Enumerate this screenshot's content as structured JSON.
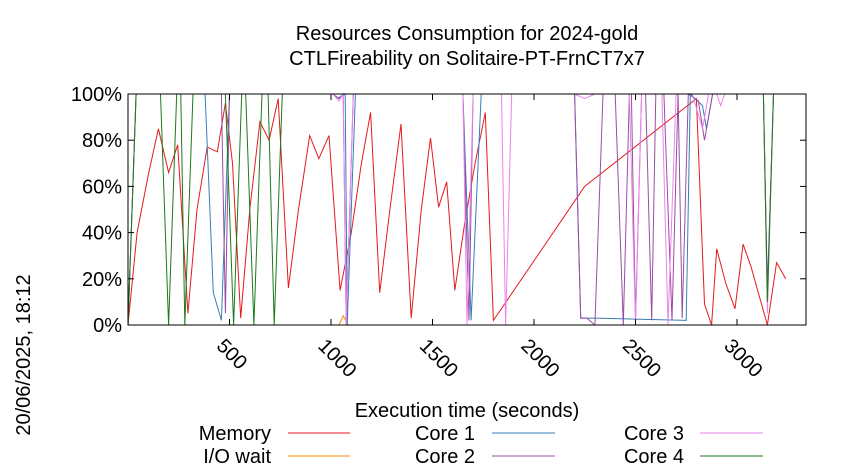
{
  "chart_data": {
    "type": "line",
    "title_line1": "Resources Consumption for 2024-gold",
    "title_line2": "CTLFireability on Solitaire-PT-FrnCT7x7",
    "xlabel": "Execution time (seconds)",
    "ylabel": "",
    "side_label": "20/06/2025, 18:12",
    "xlim": [
      0,
      3340
    ],
    "ylim": [
      0,
      100
    ],
    "x_ticks": [
      {
        "v": 500,
        "label": "500"
      },
      {
        "v": 1000,
        "label": "1000"
      },
      {
        "v": 1500,
        "label": "1500"
      },
      {
        "v": 2000,
        "label": "2000"
      },
      {
        "v": 2500,
        "label": "2500"
      },
      {
        "v": 3000,
        "label": "3000"
      }
    ],
    "y_ticks": [
      {
        "v": 0,
        "label": "0%"
      },
      {
        "v": 20,
        "label": "20%"
      },
      {
        "v": 40,
        "label": "40%"
      },
      {
        "v": 60,
        "label": "60%"
      },
      {
        "v": 80,
        "label": "80%"
      },
      {
        "v": 100,
        "label": "100%"
      }
    ],
    "legend_placement": "bottom",
    "series": [
      {
        "name": "Memory",
        "color": "#e41a1c",
        "points": [
          [
            0,
            0
          ],
          [
            45,
            40
          ],
          [
            100,
            65
          ],
          [
            150,
            85
          ],
          [
            200,
            66
          ],
          [
            245,
            78
          ],
          [
            295,
            5
          ],
          [
            340,
            50
          ],
          [
            390,
            77
          ],
          [
            440,
            75
          ],
          [
            480,
            96
          ],
          [
            515,
            70
          ],
          [
            555,
            3
          ],
          [
            600,
            50
          ],
          [
            650,
            88
          ],
          [
            695,
            80
          ],
          [
            740,
            98
          ],
          [
            790,
            16
          ],
          [
            840,
            50
          ],
          [
            895,
            82
          ],
          [
            940,
            72
          ],
          [
            990,
            82
          ],
          [
            1045,
            15
          ],
          [
            1100,
            40
          ],
          [
            1150,
            70
          ],
          [
            1195,
            92
          ],
          [
            1240,
            14
          ],
          [
            1290,
            50
          ],
          [
            1345,
            87
          ],
          [
            1395,
            3
          ],
          [
            1445,
            50
          ],
          [
            1490,
            81
          ],
          [
            1530,
            51
          ],
          [
            1570,
            62
          ],
          [
            1610,
            15
          ],
          [
            1660,
            45
          ],
          [
            1710,
            70
          ],
          [
            1760,
            92
          ],
          [
            1800,
            2
          ],
          [
            2250,
            60
          ],
          [
            2800,
            98
          ],
          [
            2840,
            9
          ],
          [
            2875,
            0
          ],
          [
            2900,
            33
          ],
          [
            2945,
            18
          ],
          [
            2990,
            7
          ],
          [
            3030,
            35
          ],
          [
            3070,
            25
          ],
          [
            3105,
            14
          ],
          [
            3150,
            0
          ],
          [
            3195,
            27
          ],
          [
            3240,
            20
          ]
        ]
      },
      {
        "name": "I/O wait",
        "color": "#ff8c00",
        "points": [
          [
            0,
            0
          ],
          [
            1040,
            0
          ],
          [
            1060,
            4
          ],
          [
            1085,
            0
          ],
          [
            3340,
            0
          ]
        ]
      },
      {
        "name": "Core 1",
        "color": "#377eb8",
        "points": [
          [
            0,
            0
          ],
          [
            40,
            100
          ],
          [
            380,
            100
          ],
          [
            420,
            14
          ],
          [
            460,
            2
          ],
          [
            500,
            100
          ],
          [
            1010,
            100
          ],
          [
            1030,
            98
          ],
          [
            1070,
            100
          ],
          [
            1080,
            0
          ],
          [
            1120,
            100
          ],
          [
            1650,
            100
          ],
          [
            1690,
            2
          ],
          [
            1740,
            100
          ],
          [
            2200,
            100
          ],
          [
            2230,
            3
          ],
          [
            2270,
            3
          ],
          [
            2300,
            3
          ],
          [
            2750,
            2
          ],
          [
            2770,
            100
          ],
          [
            2830,
            95
          ],
          [
            2850,
            85
          ],
          [
            2880,
            100
          ],
          [
            3130,
            100
          ],
          [
            3150,
            12
          ],
          [
            3180,
            100
          ]
        ]
      },
      {
        "name": "Core 2",
        "color": "#984ea3",
        "points": [
          [
            0,
            0
          ],
          [
            40,
            100
          ],
          [
            460,
            100
          ],
          [
            480,
            5
          ],
          [
            500,
            100
          ],
          [
            1010,
            100
          ],
          [
            1040,
            98
          ],
          [
            1060,
            100
          ],
          [
            1075,
            0
          ],
          [
            1110,
            100
          ],
          [
            1650,
            100
          ],
          [
            1680,
            2
          ],
          [
            1700,
            100
          ],
          [
            2200,
            100
          ],
          [
            2230,
            3
          ],
          [
            2260,
            3
          ],
          [
            2300,
            0
          ],
          [
            2340,
            100
          ],
          [
            2400,
            100
          ],
          [
            2440,
            0
          ],
          [
            2470,
            100
          ],
          [
            2480,
            100
          ],
          [
            2500,
            2
          ],
          [
            2530,
            100
          ],
          [
            2550,
            100
          ],
          [
            2580,
            2
          ],
          [
            2600,
            100
          ],
          [
            2640,
            100
          ],
          [
            2680,
            2
          ],
          [
            2710,
            100
          ],
          [
            2730,
            3
          ],
          [
            2760,
            100
          ],
          [
            2810,
            97
          ],
          [
            2840,
            80
          ],
          [
            2880,
            100
          ],
          [
            3130,
            100
          ],
          [
            3150,
            15
          ],
          [
            3180,
            100
          ]
        ]
      },
      {
        "name": "Core 3",
        "color": "#ee82ee",
        "points": [
          [
            0,
            0
          ],
          [
            40,
            100
          ],
          [
            1010,
            100
          ],
          [
            1040,
            97
          ],
          [
            1060,
            100
          ],
          [
            1075,
            0
          ],
          [
            1110,
            100
          ],
          [
            1650,
            100
          ],
          [
            1670,
            0
          ],
          [
            1700,
            100
          ],
          [
            1840,
            100
          ],
          [
            1860,
            0
          ],
          [
            1890,
            100
          ],
          [
            2200,
            100
          ],
          [
            2250,
            98
          ],
          [
            2300,
            100
          ],
          [
            2470,
            100
          ],
          [
            2500,
            0
          ],
          [
            2530,
            100
          ],
          [
            2630,
            100
          ],
          [
            2660,
            0
          ],
          [
            2700,
            100
          ],
          [
            2780,
            100
          ],
          [
            2830,
            85
          ],
          [
            2860,
            100
          ],
          [
            2900,
            100
          ],
          [
            2920,
            95
          ],
          [
            2940,
            100
          ],
          [
            3130,
            100
          ],
          [
            3150,
            5
          ],
          [
            3180,
            100
          ]
        ]
      },
      {
        "name": "Core 4",
        "color": "#1b7a1b",
        "points": [
          [
            0,
            0
          ],
          [
            40,
            100
          ],
          [
            160,
            100
          ],
          [
            200,
            0
          ],
          [
            240,
            100
          ],
          [
            260,
            100
          ],
          [
            280,
            0
          ],
          [
            320,
            100
          ],
          [
            480,
            100
          ],
          [
            520,
            0
          ],
          [
            560,
            100
          ],
          [
            580,
            100
          ],
          [
            620,
            0
          ],
          [
            660,
            100
          ],
          [
            690,
            100
          ],
          [
            720,
            0
          ],
          [
            760,
            100
          ],
          [
            800,
            100
          ],
          [
            840,
            100
          ],
          [
            880,
            100
          ],
          [
            3130,
            100
          ],
          [
            3150,
            10
          ],
          [
            3180,
            100
          ]
        ]
      }
    ]
  }
}
